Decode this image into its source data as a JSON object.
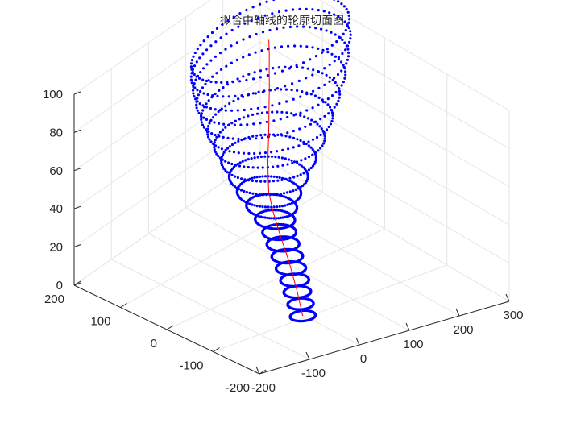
{
  "chart_data": {
    "type": "scatter",
    "dimensions": 3,
    "title": "拟合中轴线的轮廓切面图",
    "xlabel": "",
    "ylabel": "",
    "zlabel": "",
    "xlim": [
      -200,
      300
    ],
    "ylim": [
      -200,
      200
    ],
    "zlim": [
      0,
      100
    ],
    "xticks": [
      "-200",
      "-100",
      "0",
      "100",
      "200",
      "300"
    ],
    "yticks": [
      "-200",
      "-100",
      "0",
      "100",
      "200"
    ],
    "zticks": [
      "0",
      "20",
      "40",
      "60",
      "80",
      "100"
    ],
    "grid": true,
    "view": "3d-oblique",
    "series": [
      {
        "kind": "contour-slices",
        "marker": "dot",
        "color": "#0000ff",
        "description_values": "stacked closed contour rings (x, y, z in data units), centred on the centre line",
        "rings": [
          {
            "z": 5,
            "center": [
              -25,
              -115
            ],
            "rx": 22,
            "ry": 14
          },
          {
            "z": 10,
            "center": [
              -22,
              -108
            ],
            "rx": 22,
            "ry": 15
          },
          {
            "z": 15,
            "center": [
              -20,
              -100
            ],
            "rx": 23,
            "ry": 16
          },
          {
            "z": 20,
            "center": [
              -18,
              -93
            ],
            "rx": 24,
            "ry": 17
          },
          {
            "z": 25,
            "center": [
              -17,
              -85
            ],
            "rx": 25,
            "ry": 18
          },
          {
            "z": 30,
            "center": [
              -16,
              -77
            ],
            "rx": 26,
            "ry": 19
          },
          {
            "z": 35,
            "center": [
              -15,
              -68
            ],
            "rx": 27,
            "ry": 20
          },
          {
            "z": 40,
            "center": [
              -14,
              -60
            ],
            "rx": 28,
            "ry": 21
          },
          {
            "z": 45,
            "center": [
              -12,
              -50
            ],
            "rx": 32,
            "ry": 26
          },
          {
            "z": 50,
            "center": [
              -8,
              -40
            ],
            "rx": 40,
            "ry": 34
          },
          {
            "z": 55,
            "center": [
              0,
              -28
            ],
            "rx": 52,
            "ry": 42
          },
          {
            "z": 60,
            "center": [
              14,
              -15
            ],
            "rx": 66,
            "ry": 50
          },
          {
            "z": 65,
            "center": [
              32,
              0
            ],
            "rx": 82,
            "ry": 58
          },
          {
            "z": 70,
            "center": [
              52,
              15
            ],
            "rx": 100,
            "ry": 64
          },
          {
            "z": 75,
            "center": [
              72,
              30
            ],
            "rx": 118,
            "ry": 68
          },
          {
            "z": 80,
            "center": [
              92,
              45
            ],
            "rx": 136,
            "ry": 70
          },
          {
            "z": 85,
            "center": [
              110,
              58
            ],
            "rx": 150,
            "ry": 72
          },
          {
            "z": 90,
            "center": [
              126,
              70
            ],
            "rx": 160,
            "ry": 72
          },
          {
            "z": 95,
            "center": [
              140,
              80
            ],
            "rx": 168,
            "ry": 70
          },
          {
            "z": 100,
            "center": [
              150,
              88
            ],
            "rx": 170,
            "ry": 66
          }
        ]
      },
      {
        "kind": "fitted-centerline",
        "color": "#ff0000",
        "points": [
          [
            -25,
            -115,
            5
          ],
          [
            -20,
            -100,
            15
          ],
          [
            -16,
            -80,
            28
          ],
          [
            -14,
            -60,
            40
          ],
          [
            -10,
            -45,
            48
          ],
          [
            0,
            -28,
            55
          ],
          [
            14,
            -15,
            60
          ],
          [
            32,
            0,
            65
          ],
          [
            52,
            15,
            70
          ],
          [
            72,
            30,
            75
          ],
          [
            92,
            45,
            80
          ],
          [
            110,
            58,
            85
          ],
          [
            126,
            70,
            90
          ],
          [
            140,
            80,
            95
          ],
          [
            150,
            88,
            100
          ]
        ]
      }
    ]
  }
}
